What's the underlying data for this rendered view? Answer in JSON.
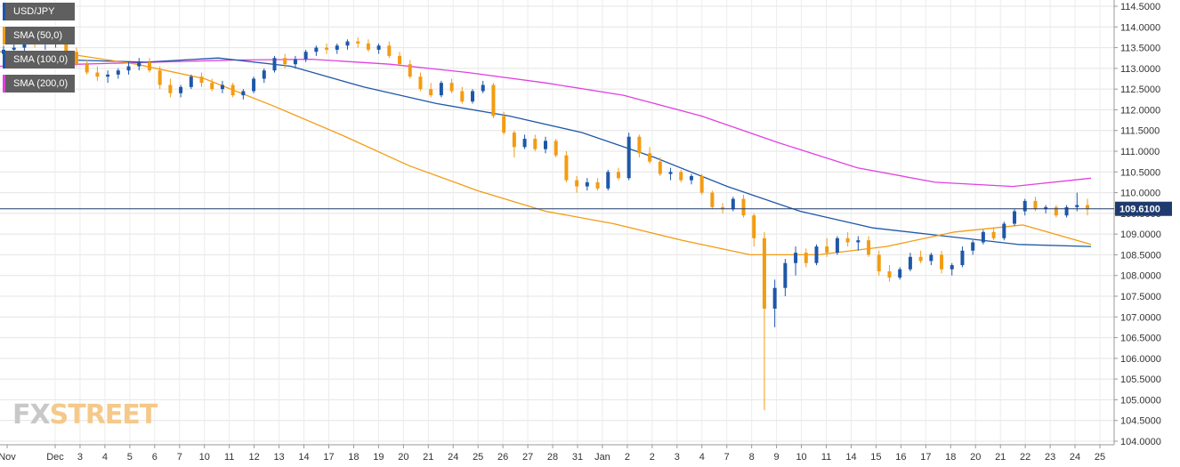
{
  "legend": [
    {
      "label": "USD/JPY",
      "color": "#1f57a8"
    },
    {
      "label": "SMA (50,0)",
      "color": "#f39c12"
    },
    {
      "label": "SMA (100,0)",
      "color": "#1f57a8"
    },
    {
      "label": "SMA (200,0)",
      "color": "#e040e0"
    }
  ],
  "logo": {
    "part1": "FX",
    "part2": "STREET"
  },
  "colors": {
    "up": "#1f57a8",
    "down": "#f39c12",
    "sma50": "#f39c12",
    "sma100": "#1f57a8",
    "sma200": "#e040e0",
    "price_line": "#1f3a6e",
    "price_tag": "#1f3a6e"
  },
  "chart_data": {
    "type": "candlestick",
    "symbol": "USD/JPY",
    "ylim": [
      104.0,
      114.5
    ],
    "y_ticks": [
      "114.5000",
      "114.0000",
      "113.5000",
      "113.0000",
      "112.5000",
      "112.0000",
      "111.5000",
      "111.0000",
      "110.5000",
      "110.0000",
      "109.5000",
      "109.0000",
      "108.5000",
      "108.0000",
      "107.5000",
      "107.0000",
      "106.5000",
      "106.0000",
      "105.5000",
      "105.0000",
      "104.5000",
      "104.0000"
    ],
    "x_ticks": [
      "Nov",
      "Dec",
      "3",
      "4",
      "5",
      "6",
      "7",
      "10",
      "11",
      "12",
      "13",
      "14",
      "17",
      "18",
      "19",
      "20",
      "21",
      "24",
      "25",
      "26",
      "27",
      "28",
      "31",
      "Jan",
      "2",
      "2",
      "3",
      "4",
      "7",
      "8",
      "9",
      "10",
      "11",
      "14",
      "15",
      "16",
      "17",
      "18",
      "20",
      "21",
      "22",
      "23",
      "24",
      "25"
    ],
    "current_price": 109.61,
    "current_price_label": "109.6100",
    "candles": [
      [
        113.35,
        113.55,
        113.2,
        113.45
      ],
      [
        113.45,
        113.6,
        113.3,
        113.5
      ],
      [
        113.5,
        113.7,
        113.4,
        113.62
      ],
      [
        113.62,
        113.75,
        113.5,
        113.58
      ],
      [
        113.58,
        113.7,
        113.45,
        113.64
      ],
      [
        113.64,
        113.8,
        113.5,
        113.72
      ],
      [
        113.72,
        113.8,
        113.35,
        113.4
      ],
      [
        113.4,
        113.5,
        113.05,
        113.1
      ],
      [
        113.1,
        113.2,
        112.85,
        112.9
      ],
      [
        112.9,
        113.05,
        112.7,
        112.8
      ],
      [
        112.8,
        112.95,
        112.65,
        112.85
      ],
      [
        112.85,
        113.0,
        112.75,
        112.95
      ],
      [
        112.95,
        113.15,
        112.85,
        113.05
      ],
      [
        113.05,
        113.25,
        112.95,
        113.15
      ],
      [
        113.15,
        113.25,
        112.9,
        112.95
      ],
      [
        112.95,
        113.05,
        112.5,
        112.6
      ],
      [
        112.6,
        112.75,
        112.3,
        112.4
      ],
      [
        112.4,
        112.6,
        112.3,
        112.55
      ],
      [
        112.55,
        112.85,
        112.5,
        112.8
      ],
      [
        112.8,
        112.9,
        112.55,
        112.65
      ],
      [
        112.65,
        112.75,
        112.45,
        112.5
      ],
      [
        112.5,
        112.7,
        112.4,
        112.6
      ],
      [
        112.6,
        112.65,
        112.3,
        112.35
      ],
      [
        112.35,
        112.5,
        112.25,
        112.45
      ],
      [
        112.45,
        112.8,
        112.4,
        112.75
      ],
      [
        112.75,
        113.0,
        112.65,
        112.95
      ],
      [
        112.95,
        113.3,
        112.9,
        113.25
      ],
      [
        113.25,
        113.35,
        113.0,
        113.1
      ],
      [
        113.1,
        113.3,
        113.0,
        113.22
      ],
      [
        113.22,
        113.45,
        113.15,
        113.4
      ],
      [
        113.4,
        113.55,
        113.3,
        113.5
      ],
      [
        113.5,
        113.6,
        113.35,
        113.45
      ],
      [
        113.45,
        113.6,
        113.35,
        113.55
      ],
      [
        113.55,
        113.7,
        113.45,
        113.65
      ],
      [
        113.65,
        113.75,
        113.5,
        113.6
      ],
      [
        113.6,
        113.7,
        113.4,
        113.45
      ],
      [
        113.45,
        113.6,
        113.35,
        113.55
      ],
      [
        113.55,
        113.65,
        113.25,
        113.3
      ],
      [
        113.3,
        113.4,
        113.05,
        113.1
      ],
      [
        113.1,
        113.2,
        112.75,
        112.8
      ],
      [
        112.8,
        112.9,
        112.45,
        112.5
      ],
      [
        112.5,
        112.65,
        112.3,
        112.35
      ],
      [
        112.35,
        112.7,
        112.3,
        112.65
      ],
      [
        112.65,
        112.75,
        112.4,
        112.45
      ],
      [
        112.45,
        112.55,
        112.15,
        112.2
      ],
      [
        112.2,
        112.5,
        112.15,
        112.45
      ],
      [
        112.45,
        112.7,
        112.4,
        112.6
      ],
      [
        112.6,
        112.65,
        111.8,
        111.85
      ],
      [
        111.85,
        111.95,
        111.4,
        111.45
      ],
      [
        111.45,
        111.5,
        110.85,
        111.1
      ],
      [
        111.1,
        111.4,
        111.05,
        111.3
      ],
      [
        111.3,
        111.4,
        111.0,
        111.05
      ],
      [
        111.05,
        111.35,
        110.95,
        111.25
      ],
      [
        111.25,
        111.3,
        110.85,
        110.9
      ],
      [
        110.9,
        111.0,
        110.25,
        110.3
      ],
      [
        110.3,
        110.4,
        110.0,
        110.15
      ],
      [
        110.15,
        110.35,
        110.05,
        110.25
      ],
      [
        110.25,
        110.35,
        110.05,
        110.1
      ],
      [
        110.1,
        110.55,
        110.05,
        110.5
      ],
      [
        110.5,
        110.6,
        110.3,
        110.35
      ],
      [
        110.35,
        111.45,
        110.3,
        111.35
      ],
      [
        111.35,
        111.4,
        110.85,
        110.95
      ],
      [
        110.95,
        111.1,
        110.7,
        110.75
      ],
      [
        110.75,
        110.85,
        110.4,
        110.45
      ],
      [
        110.45,
        110.6,
        110.3,
        110.5
      ],
      [
        110.5,
        110.55,
        110.25,
        110.3
      ],
      [
        110.3,
        110.45,
        110.2,
        110.4
      ],
      [
        110.4,
        110.45,
        109.95,
        110.0
      ],
      [
        110.0,
        110.05,
        109.6,
        109.65
      ],
      [
        109.65,
        109.75,
        109.5,
        109.6
      ],
      [
        109.6,
        109.9,
        109.55,
        109.85
      ],
      [
        109.85,
        109.95,
        109.4,
        109.45
      ],
      [
        109.45,
        109.5,
        108.7,
        108.9
      ],
      [
        108.9,
        109.05,
        104.75,
        107.2
      ],
      [
        107.2,
        107.9,
        106.75,
        107.7
      ],
      [
        107.7,
        108.4,
        107.5,
        108.3
      ],
      [
        108.3,
        108.7,
        108.0,
        108.55
      ],
      [
        108.55,
        108.65,
        108.2,
        108.3
      ],
      [
        108.3,
        108.75,
        108.25,
        108.7
      ],
      [
        108.7,
        108.9,
        108.45,
        108.55
      ],
      [
        108.55,
        108.95,
        108.5,
        108.9
      ],
      [
        108.9,
        109.05,
        108.7,
        108.8
      ],
      [
        108.8,
        108.95,
        108.6,
        108.85
      ],
      [
        108.85,
        108.95,
        108.45,
        108.5
      ],
      [
        108.5,
        108.6,
        108.0,
        108.1
      ],
      [
        108.1,
        108.25,
        107.85,
        107.95
      ],
      [
        107.95,
        108.2,
        107.9,
        108.15
      ],
      [
        108.15,
        108.55,
        108.1,
        108.45
      ],
      [
        108.45,
        108.6,
        108.3,
        108.35
      ],
      [
        108.35,
        108.55,
        108.25,
        108.5
      ],
      [
        108.5,
        108.6,
        108.05,
        108.15
      ],
      [
        108.15,
        108.3,
        108.0,
        108.25
      ],
      [
        108.25,
        108.7,
        108.2,
        108.6
      ],
      [
        108.6,
        108.85,
        108.5,
        108.8
      ],
      [
        108.8,
        109.1,
        108.75,
        109.05
      ],
      [
        109.05,
        109.15,
        108.85,
        108.9
      ],
      [
        108.9,
        109.3,
        108.85,
        109.25
      ],
      [
        109.25,
        109.6,
        109.2,
        109.55
      ],
      [
        109.55,
        109.85,
        109.45,
        109.8
      ],
      [
        109.8,
        109.9,
        109.55,
        109.6
      ],
      [
        109.6,
        109.7,
        109.5,
        109.65
      ],
      [
        109.65,
        109.7,
        109.4,
        109.45
      ],
      [
        109.45,
        109.7,
        109.4,
        109.65
      ],
      [
        109.65,
        110.0,
        109.55,
        109.7
      ],
      [
        109.7,
        109.85,
        109.45,
        109.6
      ]
    ],
    "sma50": [
      [
        113.4,
        113.3
      ],
      [
        113.35,
        113.45
      ],
      [
        113.1,
        113.2
      ],
      [
        112.75,
        113.25
      ],
      [
        112.1,
        113.1
      ],
      [
        111.4,
        112.9
      ],
      [
        110.65,
        112.55
      ],
      [
        110.05,
        112.15
      ],
      [
        109.55,
        111.7
      ],
      [
        109.25,
        110.9
      ],
      [
        108.85,
        110.0
      ],
      [
        108.5,
        109.25
      ],
      [
        108.5,
        108.8
      ],
      [
        108.7,
        108.6
      ],
      [
        109.05,
        108.6
      ],
      [
        109.22,
        108.75
      ]
    ],
    "sma100": [
      [
        113.4,
        113.0
      ],
      [
        113.2,
        113.05
      ],
      [
        113.15,
        113.2
      ],
      [
        113.25,
        113.25
      ],
      [
        113.05,
        113.25
      ],
      [
        112.55,
        113.1
      ],
      [
        112.15,
        112.85
      ],
      [
        111.85,
        112.55
      ],
      [
        111.45,
        112.2
      ],
      [
        110.85,
        111.5
      ],
      [
        110.15,
        110.65
      ],
      [
        109.55,
        109.75
      ],
      [
        109.15,
        109.05
      ],
      [
        108.95,
        108.7
      ],
      [
        108.75,
        108.7
      ]
    ],
    "sma200": [
      [
        113.05,
        113.1
      ],
      [
        113.1,
        113.15
      ],
      [
        113.15,
        113.2
      ],
      [
        113.2,
        113.25
      ],
      [
        113.22,
        113.25
      ],
      [
        113.1,
        113.2
      ],
      [
        112.9,
        113.05
      ],
      [
        112.65,
        112.85
      ],
      [
        112.35,
        112.6
      ],
      [
        111.85,
        112.2
      ],
      [
        111.2,
        111.7
      ],
      [
        110.6,
        111.15
      ],
      [
        110.25,
        110.65
      ],
      [
        110.15,
        110.35
      ]
    ]
  }
}
